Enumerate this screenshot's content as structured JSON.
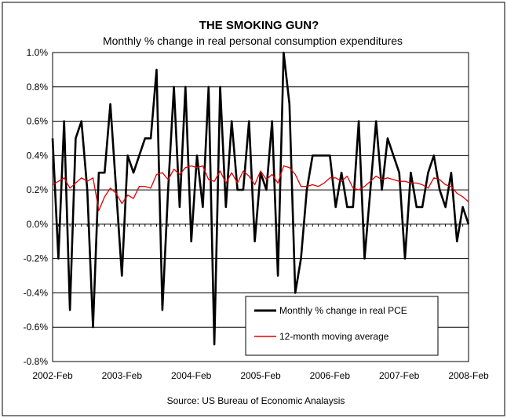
{
  "chart_data": {
    "type": "line",
    "title": "THE SMOKING GUN?",
    "subtitle": "Monthly % change in real personal consumption expenditures",
    "source": "Source: US Bureau of Economic Analaysis",
    "ylim": [
      -0.8,
      1.0
    ],
    "yticks": [
      "1.0%",
      "0.8%",
      "0.6%",
      "0.4%",
      "0.2%",
      "0.0%",
      "-0.2%",
      "-0.4%",
      "-0.6%",
      "-0.8%"
    ],
    "ytick_values": [
      1.0,
      0.8,
      0.6,
      0.4,
      0.2,
      0.0,
      -0.2,
      -0.4,
      -0.6,
      -0.8
    ],
    "xticks": [
      "2002-Feb",
      "2003-Feb",
      "2004-Feb",
      "2005-Feb",
      "2006-Feb",
      "2007-Feb",
      "2008-Feb"
    ],
    "xtick_index": [
      0,
      12,
      24,
      36,
      48,
      60,
      72
    ],
    "grid": true,
    "legend_position": "bottom-right inside plot",
    "series": [
      {
        "name": "Monthly % change in real PCE",
        "color": "#000000",
        "values": [
          0.5,
          -0.2,
          0.6,
          -0.5,
          0.5,
          0.6,
          0.2,
          -0.6,
          0.3,
          0.3,
          0.7,
          0.2,
          -0.3,
          0.4,
          0.3,
          0.4,
          0.5,
          0.5,
          0.9,
          -0.5,
          0.2,
          0.8,
          0.1,
          0.8,
          -0.1,
          0.4,
          0.1,
          0.8,
          -0.7,
          0.8,
          0.1,
          0.6,
          0.2,
          0.2,
          0.6,
          -0.1,
          0.3,
          0.2,
          0.6,
          -0.3,
          1.0,
          0.7,
          -0.4,
          -0.2,
          0.2,
          0.4,
          0.4,
          0.4,
          0.4,
          0.1,
          0.3,
          0.1,
          0.1,
          0.6,
          -0.2,
          0.2,
          0.6,
          0.2,
          0.5,
          0.4,
          0.3,
          -0.2,
          0.3,
          0.1,
          0.1,
          0.3,
          0.4,
          0.2,
          0.1,
          0.3,
          -0.1,
          0.1,
          0.0
        ]
      },
      {
        "name": "12-month moving average",
        "color": "#e00000",
        "values": [
          0.23,
          0.25,
          0.27,
          0.21,
          0.24,
          0.27,
          0.25,
          0.27,
          0.08,
          0.16,
          0.21,
          0.18,
          0.12,
          0.17,
          0.15,
          0.22,
          0.22,
          0.21,
          0.29,
          0.3,
          0.26,
          0.32,
          0.29,
          0.33,
          0.34,
          0.33,
          0.34,
          0.26,
          0.25,
          0.31,
          0.24,
          0.3,
          0.24,
          0.31,
          0.28,
          0.23,
          0.31,
          0.26,
          0.29,
          0.24,
          0.34,
          0.33,
          0.29,
          0.22,
          0.22,
          0.23,
          0.22,
          0.24,
          0.27,
          0.27,
          0.25,
          0.28,
          0.21,
          0.2,
          0.22,
          0.25,
          0.28,
          0.26,
          0.27,
          0.26,
          0.25,
          0.25,
          0.24,
          0.24,
          0.23,
          0.21,
          0.27,
          0.26,
          0.23,
          0.22,
          0.18,
          0.16,
          0.13
        ]
      }
    ]
  }
}
